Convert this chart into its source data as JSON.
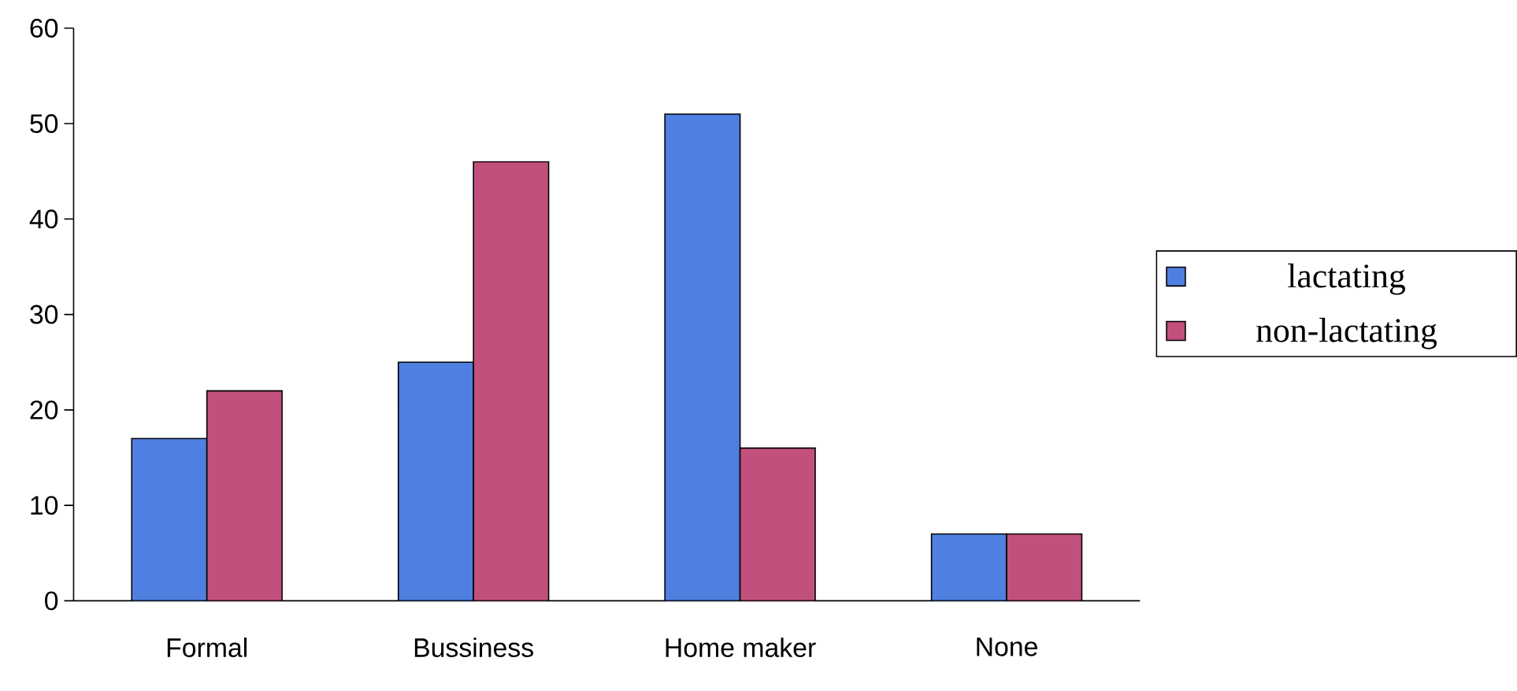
{
  "chart_data": {
    "type": "bar",
    "categories": [
      "Formal",
      "Bussiness",
      "Home maker",
      "None"
    ],
    "series": [
      {
        "name": "lactating",
        "color": "#4f7fe0",
        "values": [
          17,
          25,
          51,
          7
        ]
      },
      {
        "name": "non-lactating",
        "color": "#c2507c",
        "values": [
          22,
          46,
          16,
          7
        ]
      }
    ],
    "ylim": [
      0,
      60
    ],
    "yticks": [
      0,
      10,
      20,
      30,
      40,
      50,
      60
    ],
    "grid": false,
    "legend": "right"
  }
}
